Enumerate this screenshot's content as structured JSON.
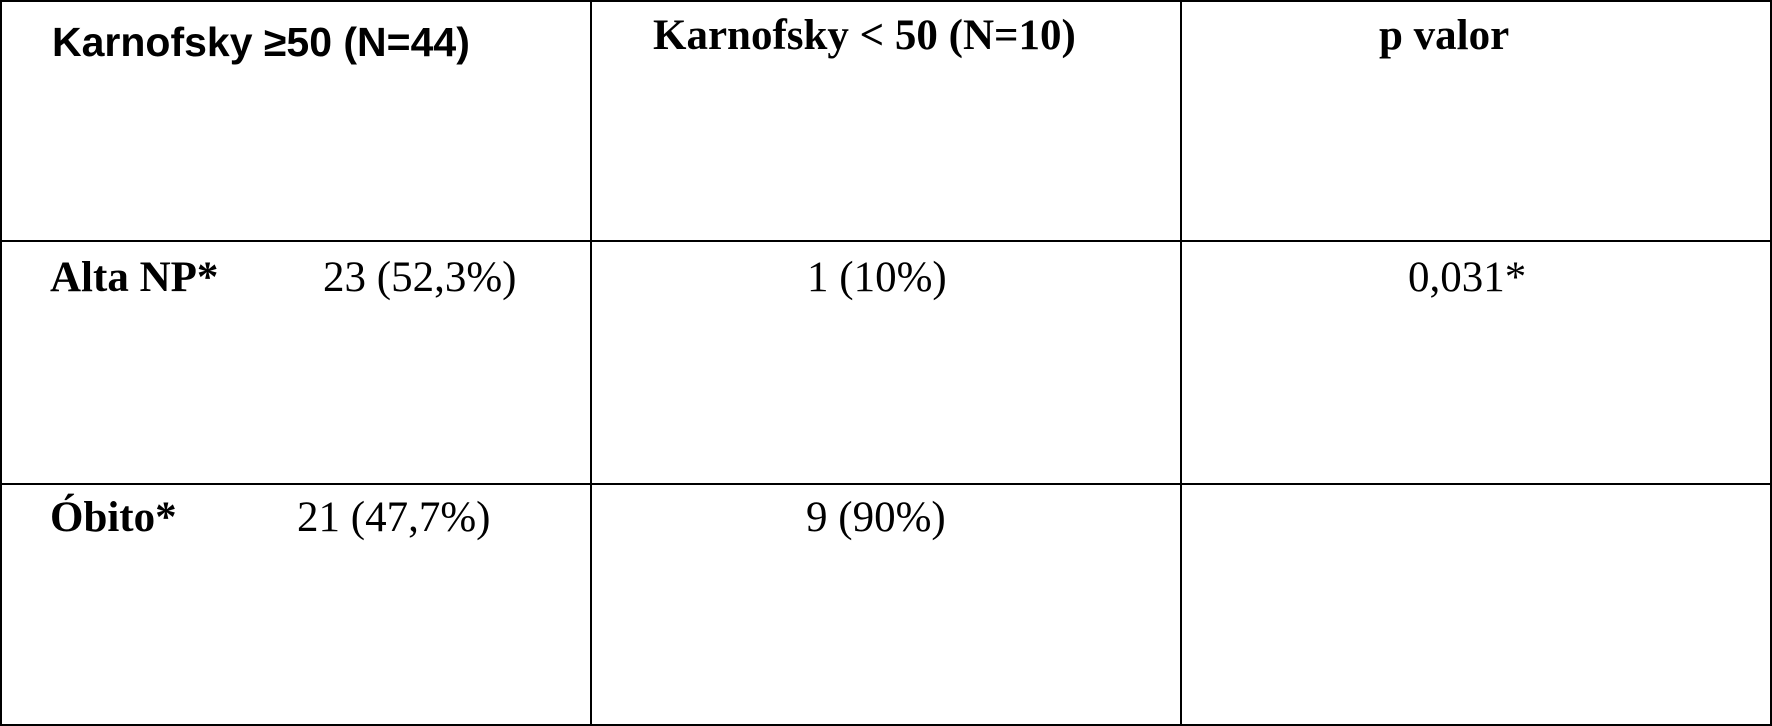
{
  "table": {
    "headers": [
      "Karnofsky ≥50 (N=44)",
      "Karnofsky < 50 (N=10)",
      "p valor"
    ],
    "rows": [
      {
        "label": "Alta NP*",
        "ge50": "23 (52,3%)",
        "lt50": "1 (10%)",
        "p": "0,031*"
      },
      {
        "label": "Óbito*",
        "ge50": "21 (47,7%)",
        "lt50": "9 (90%)",
        "p": ""
      }
    ]
  }
}
